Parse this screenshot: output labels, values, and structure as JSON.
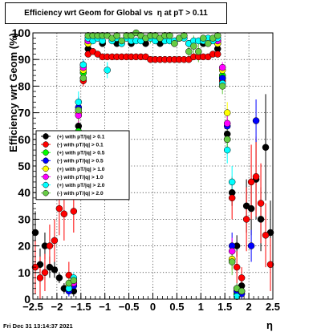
{
  "window": {
    "title": "Efficiency wrt Geom for Global vs  η at pT > 0.11",
    "timestamp": "Fri Dec 31 13:14:37 2021"
  },
  "chart_data": {
    "type": "scatter",
    "title": "Efficiency wrt Geom for Global vs  η at pT > 0.11",
    "xlabel": "η",
    "ylabel": "Efficiency wrt Geom (%)",
    "xlim": [
      -2.5,
      2.5
    ],
    "ylim": [
      0,
      100
    ],
    "xticks": [
      -2.5,
      -2,
      -1.5,
      -1,
      -0.5,
      0,
      0.5,
      1,
      1.5,
      2,
      2.5
    ],
    "xtick_labels": [
      "−2.5",
      "−2",
      "−1.5",
      "−1",
      "−0.5",
      "0",
      "0.5",
      "1",
      "1.5",
      "2",
      "2.5"
    ],
    "yticks": [
      0,
      10,
      20,
      30,
      40,
      50,
      60,
      70,
      80,
      90,
      100
    ],
    "grid": true,
    "legend_position": "middle-left",
    "series": [
      {
        "name": "(+) with pT/|q| > 0.1",
        "color": "#000000",
        "x": [
          -2.45,
          -2.35,
          -2.25,
          -2.15,
          -2.05,
          -1.95,
          -1.85,
          -1.75,
          -1.65,
          -1.55,
          -1.45,
          -1.35,
          -1.05,
          -0.75,
          -0.45,
          -0.15,
          0.15,
          0.45,
          0.75,
          1.05,
          1.35,
          1.45,
          1.55,
          1.65,
          1.75,
          1.85,
          1.95,
          2.05,
          2.15,
          2.25,
          2.35,
          2.45
        ],
        "y": [
          25,
          13,
          20,
          12,
          11,
          8,
          4,
          5,
          3,
          65,
          83,
          94,
          96,
          96,
          96,
          96,
          96,
          96,
          96,
          96,
          94,
          83,
          62,
          40,
          20,
          5,
          35,
          34,
          45,
          30,
          57,
          25
        ],
        "err": [
          8,
          6,
          5,
          4,
          3,
          2,
          2,
          2,
          2,
          4,
          2,
          1,
          1,
          1,
          1,
          1,
          1,
          1,
          1,
          1,
          1,
          2,
          4,
          5,
          4,
          2,
          10,
          10,
          15,
          12,
          20,
          12
        ]
      },
      {
        "name": "(-) with pT/|q| > 0.1",
        "color": "#ff0000",
        "x": [
          -2.45,
          -2.35,
          -2.25,
          -2.15,
          -2.05,
          -1.95,
          -1.85,
          -1.75,
          -1.65,
          -1.55,
          -1.45,
          -1.35,
          -1.25,
          -1.15,
          -1.05,
          -0.95,
          -0.85,
          -0.75,
          -0.65,
          -0.55,
          -0.45,
          -0.35,
          -0.25,
          -0.15,
          -0.05,
          0.05,
          0.15,
          0.25,
          0.35,
          0.45,
          0.55,
          0.65,
          0.75,
          0.85,
          0.95,
          1.05,
          1.15,
          1.25,
          1.35,
          1.45,
          1.55,
          1.65,
          1.75,
          1.85,
          1.95,
          2.05,
          2.15,
          2.25,
          2.35,
          2.45
        ],
        "y": [
          12,
          8,
          10,
          20,
          22,
          34,
          32,
          9,
          33,
          60,
          82,
          92,
          93,
          92,
          91,
          91,
          91,
          91,
          91,
          91,
          91,
          91,
          91,
          91,
          90,
          90,
          90,
          90,
          90,
          90,
          90,
          90,
          90,
          91,
          91,
          91,
          91,
          92,
          92,
          82,
          60,
          38,
          12,
          8,
          30,
          44,
          46,
          36,
          24,
          13
        ],
        "err": [
          10,
          8,
          7,
          8,
          8,
          10,
          10,
          5,
          8,
          5,
          2,
          1,
          1,
          1,
          1,
          1,
          1,
          1,
          1,
          1,
          1,
          1,
          1,
          1,
          1,
          1,
          1,
          1,
          1,
          1,
          1,
          1,
          1,
          1,
          1,
          1,
          1,
          1,
          1,
          2,
          5,
          8,
          6,
          4,
          12,
          14,
          15,
          15,
          12,
          10
        ]
      },
      {
        "name": "(+) with pT/|q| > 0.5",
        "color": "#00ff00",
        "x": [
          -1.75,
          -1.65,
          -1.55,
          -1.45,
          -1.35,
          1.35,
          1.45,
          1.55,
          1.65,
          1.75
        ],
        "y": [
          4,
          6,
          63,
          85,
          96,
          96,
          84,
          60,
          15,
          2
        ],
        "err": [
          2,
          2,
          4,
          2,
          1,
          1,
          2,
          4,
          4,
          2
        ]
      },
      {
        "name": "(-) with pT/|q| > 0.5",
        "color": "#0000ff",
        "x": [
          -1.75,
          -1.65,
          -1.55,
          -1.45,
          -1.35,
          1.35,
          1.45,
          1.55,
          1.65,
          1.75,
          1.85,
          2.05,
          2.15
        ],
        "y": [
          3,
          5,
          72,
          88,
          97,
          97,
          83,
          65,
          20,
          3,
          2,
          20,
          67
        ],
        "err": [
          2,
          2,
          4,
          2,
          1,
          1,
          2,
          4,
          5,
          2,
          2,
          6,
          8
        ]
      },
      {
        "name": "(+) with pT/|q| > 1.0",
        "color": "#ffff00",
        "x": [
          -1.75,
          -1.65,
          -1.55,
          -1.45,
          -1.35,
          1.35,
          1.45,
          1.55,
          1.65
        ],
        "y": [
          5,
          7,
          70,
          86,
          96,
          96,
          86,
          70,
          15
        ],
        "err": [
          2,
          2,
          4,
          2,
          1,
          1,
          2,
          4,
          4
        ]
      },
      {
        "name": "(-) with pT/|q| > 1.0",
        "color": "#ff00ff",
        "x": [
          -1.75,
          -1.65,
          -1.55,
          -1.45,
          -1.35,
          1.35,
          1.45,
          1.55,
          1.65,
          1.75,
          1.85
        ],
        "y": [
          4,
          6,
          69,
          87,
          97,
          97,
          87,
          66,
          18,
          4,
          3
        ],
        "err": [
          2,
          2,
          4,
          2,
          1,
          1,
          2,
          4,
          5,
          2,
          2
        ]
      },
      {
        "name": "(+) with pT/|q| > 2.0",
        "color": "#00ffff",
        "x": [
          -1.75,
          -1.65,
          -1.55,
          -1.45,
          -1.35,
          -1.25,
          -1.15,
          -1.05,
          -0.95,
          -0.85,
          -0.75,
          -0.65,
          -0.55,
          -0.45,
          -0.35,
          -0.25,
          -0.15,
          -0.05,
          0.05,
          0.15,
          0.25,
          0.35,
          0.45,
          0.55,
          0.65,
          0.75,
          0.85,
          0.95,
          1.05,
          1.15,
          1.25,
          1.35,
          1.45,
          1.55,
          1.65,
          1.75
        ],
        "y": [
          4,
          8,
          74,
          88,
          98,
          97,
          98,
          97,
          86,
          97,
          98,
          96,
          98,
          97,
          97,
          97,
          98,
          98,
          97,
          98,
          97,
          97,
          97,
          98,
          98,
          96,
          97,
          97,
          97,
          98,
          97,
          98,
          81,
          56,
          44,
          1
        ],
        "err": [
          2,
          2,
          4,
          2,
          1,
          1,
          1,
          1,
          3,
          1,
          1,
          1,
          1,
          1,
          1,
          1,
          1,
          1,
          1,
          1,
          1,
          1,
          1,
          1,
          1,
          1,
          1,
          1,
          1,
          1,
          1,
          1,
          2,
          5,
          6,
          1
        ]
      },
      {
        "name": "(-) with pT/|q| > 2.0",
        "color": "#66cc44",
        "x": [
          -1.75,
          -1.65,
          -1.55,
          -1.45,
          -1.35,
          -1.25,
          -1.15,
          -1.05,
          -0.95,
          -0.85,
          -0.75,
          -0.65,
          -0.55,
          -0.45,
          -0.35,
          -0.25,
          -0.15,
          -0.05,
          0.05,
          0.15,
          0.25,
          0.35,
          0.45,
          0.55,
          0.65,
          0.75,
          0.85,
          0.95,
          1.05,
          1.15,
          1.25,
          1.35,
          1.45,
          1.55,
          1.65,
          1.75,
          1.85
        ],
        "y": [
          6,
          7,
          71,
          83,
          99,
          99,
          99,
          99,
          99,
          98,
          99,
          97,
          99,
          99,
          100,
          99,
          98,
          99,
          99,
          98,
          99,
          99,
          96,
          98,
          99,
          93,
          95,
          93,
          98,
          96,
          98,
          99,
          80,
          60,
          14,
          4,
          3
        ],
        "err": [
          2,
          2,
          4,
          2,
          1,
          1,
          1,
          1,
          1,
          1,
          1,
          1,
          1,
          1,
          1,
          1,
          1,
          3,
          1,
          1,
          1,
          1,
          1,
          1,
          1,
          4,
          4,
          4,
          1,
          1,
          1,
          1,
          3,
          5,
          5,
          2,
          2
        ]
      }
    ]
  }
}
